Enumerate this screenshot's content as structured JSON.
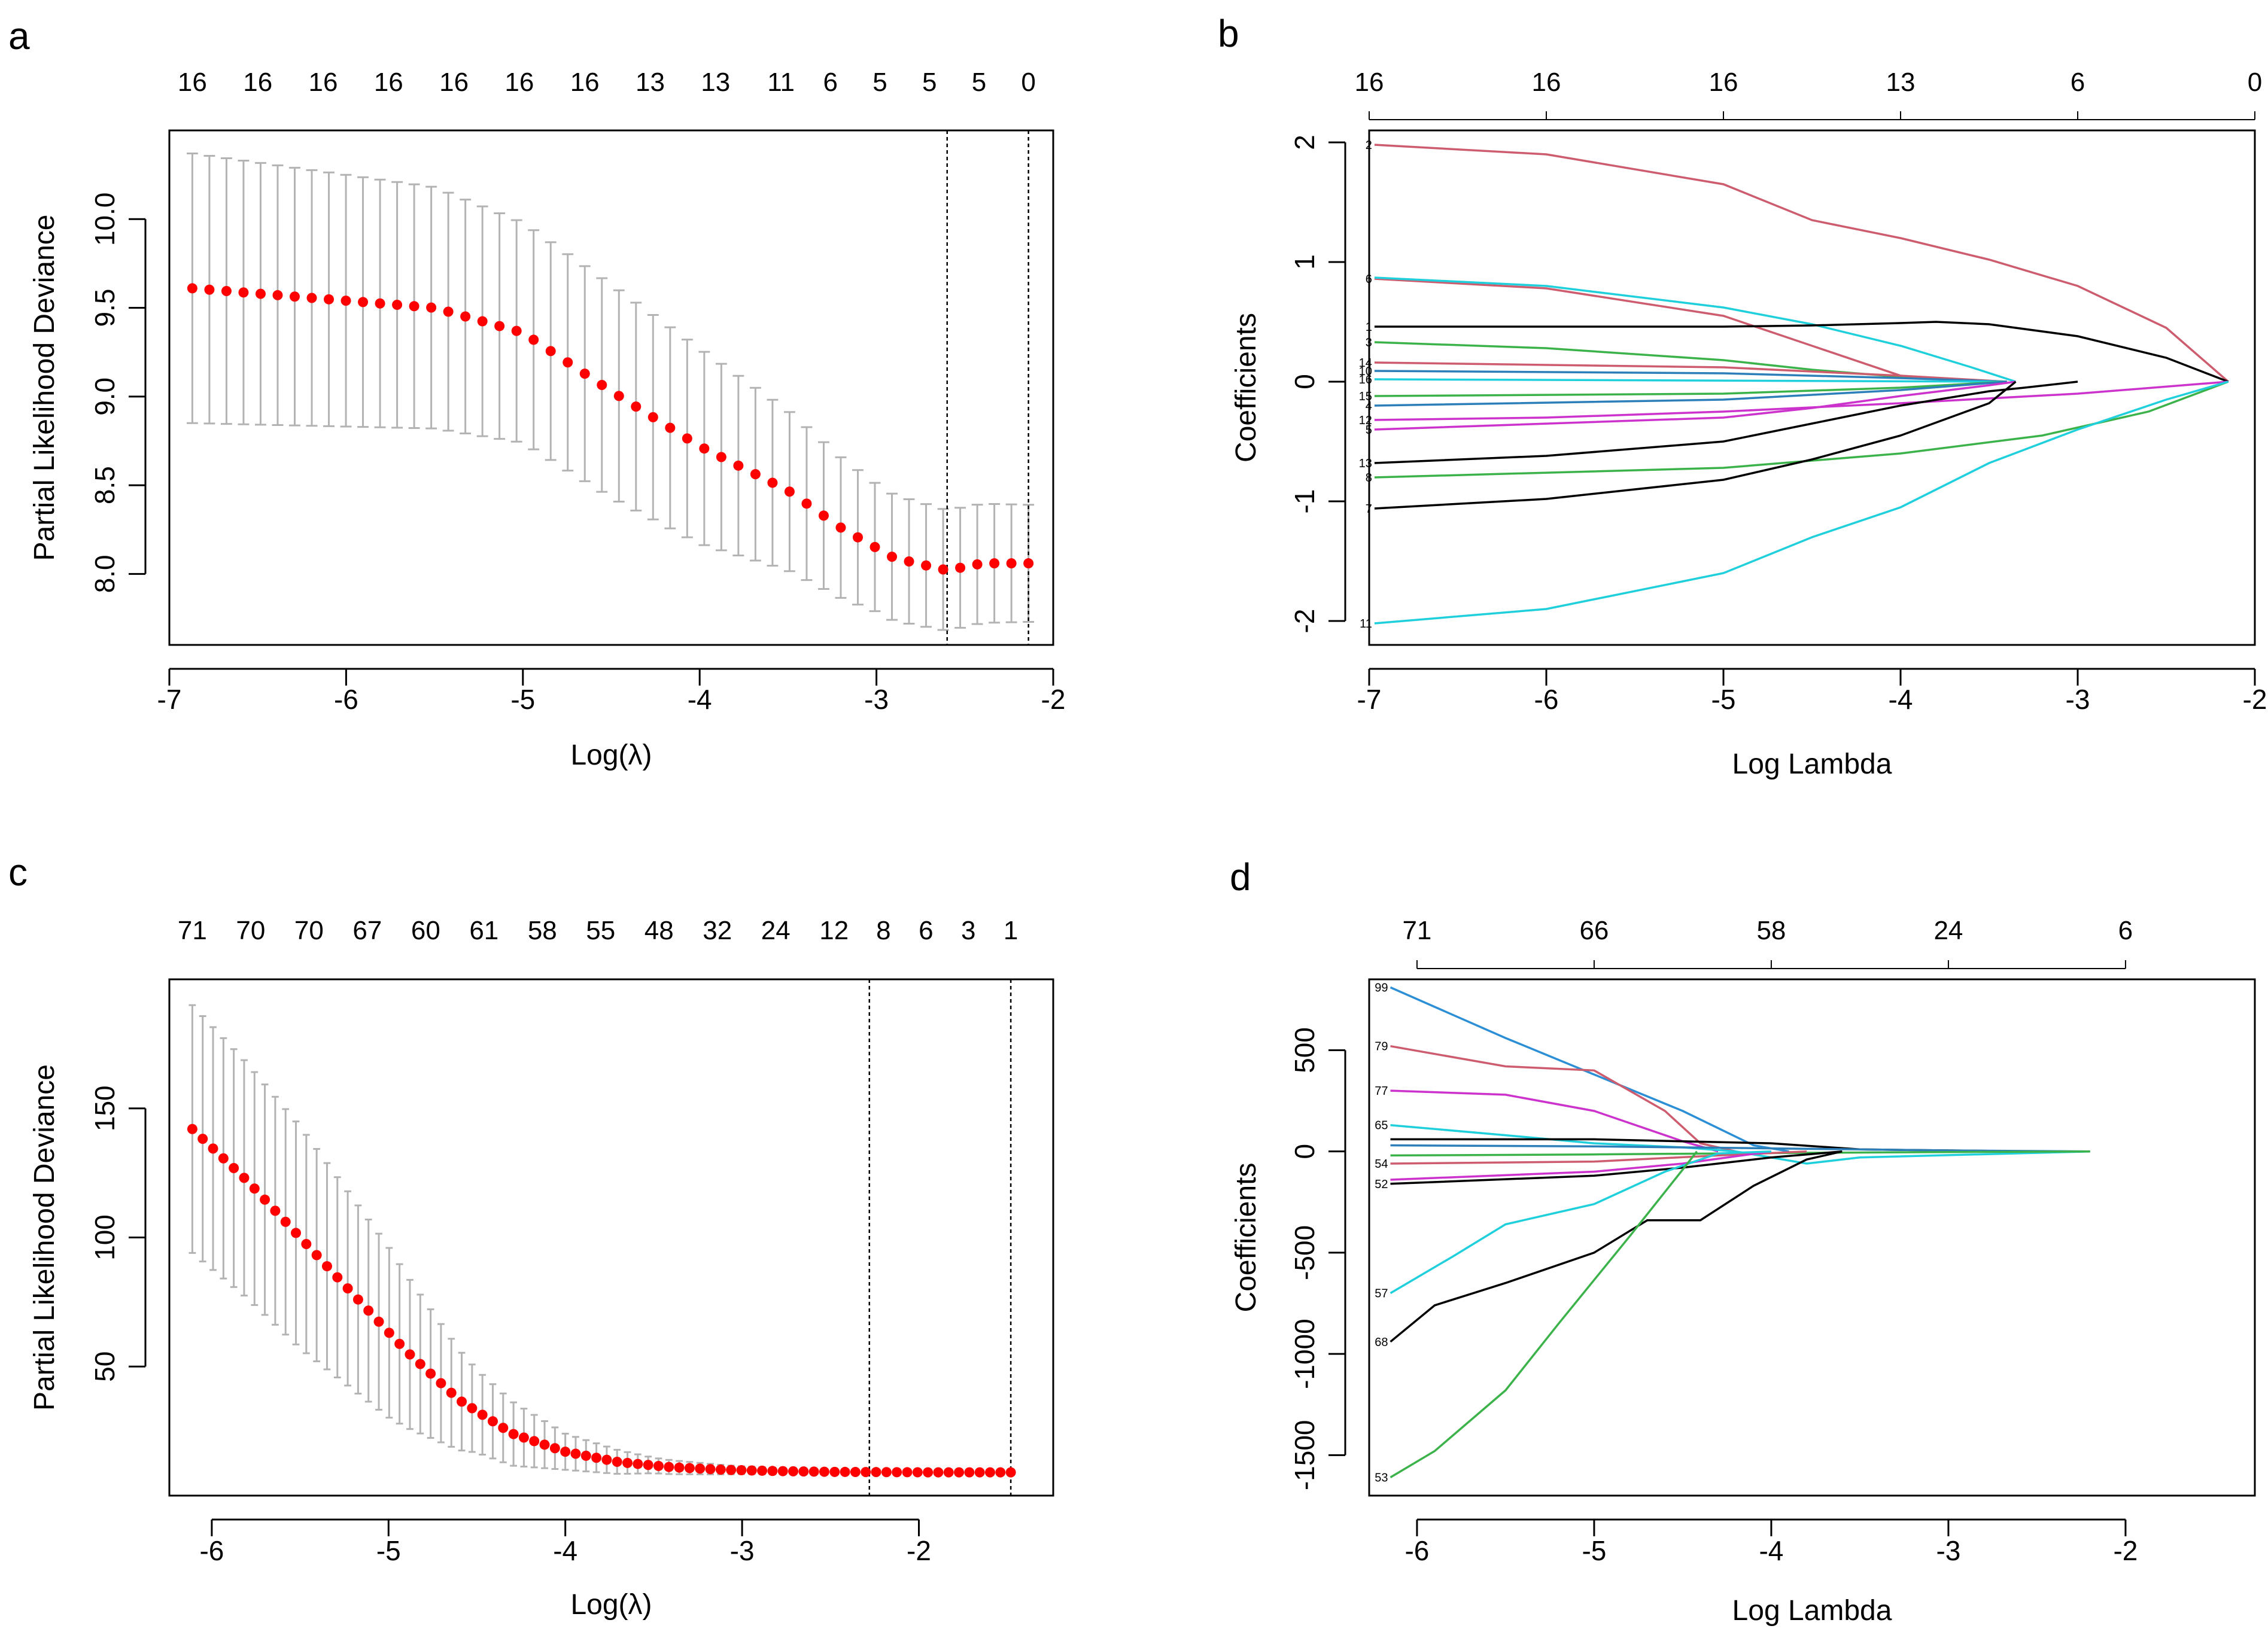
{
  "chart_data": [
    {
      "panel": "a",
      "type": "scatter",
      "subtype": "cv-deviance-with-errorbars",
      "xlabel": "Log(λ)",
      "ylabel": "Partial Likelihood Deviance",
      "xlim": [
        -7.0,
        -2.0
      ],
      "ylim": [
        7.6,
        10.5
      ],
      "xticks": [
        -7,
        -6,
        -5,
        -4,
        -3,
        -2
      ],
      "xtick_labels": [
        "-7",
        "-6",
        "-5",
        "-4",
        "-3",
        "-2"
      ],
      "yticks": [
        8.0,
        8.5,
        9.0,
        9.5,
        10.0
      ],
      "ytick_labels": [
        "8.0",
        "8.5",
        "9.0",
        "9.5",
        "10.0"
      ],
      "top_label_x": [
        -6.87,
        -6.5,
        -6.13,
        -5.76,
        -5.39,
        -5.02,
        -4.65,
        -4.28,
        -3.91,
        -3.54,
        -3.26,
        -2.98,
        -2.7,
        -2.42,
        -2.14
      ],
      "top_labels": [
        "16",
        "16",
        "16",
        "16",
        "16",
        "16",
        "16",
        "13",
        "13",
        "11",
        "6",
        "5",
        "5",
        "5",
        "0"
      ],
      "vlines": [
        -2.6,
        -2.14
      ],
      "curve": {
        "x_start": -6.87,
        "x_end": -2.14,
        "n": 50,
        "x": [
          -6.87,
          -5.5,
          -5.0,
          -4.5,
          -4.0,
          -3.5,
          -3.2,
          -2.9,
          -2.6,
          -2.4,
          -2.14
        ],
        "y": [
          9.61,
          9.5,
          9.36,
          9.03,
          8.72,
          8.47,
          8.26,
          8.09,
          8.02,
          8.06,
          8.06
        ]
      },
      "error": {
        "x": [
          -6.87,
          -5.5,
          -5.0,
          -4.5,
          -4.0,
          -3.5,
          -3.0,
          -2.6,
          -2.14
        ],
        "half_width": [
          0.76,
          0.68,
          0.62,
          0.6,
          0.55,
          0.45,
          0.36,
          0.34,
          0.33
        ]
      }
    },
    {
      "panel": "b",
      "type": "line",
      "subtype": "coefficient-paths",
      "xlabel": "Log Lambda",
      "ylabel": "Coefficients",
      "xlim": [
        -7.0,
        -2.0
      ],
      "ylim": [
        -2.2,
        2.1
      ],
      "xticks": [
        -7,
        -6,
        -5,
        -4,
        -3,
        -2
      ],
      "xtick_labels": [
        "-7",
        "-6",
        "-5",
        "-4",
        "-3",
        "-2"
      ],
      "yticks": [
        -2,
        -1,
        0,
        1,
        2
      ],
      "ytick_labels": [
        "-2",
        "-1",
        "0",
        "1",
        "2"
      ],
      "top_label_x": [
        -7,
        -6,
        -5,
        -4,
        -3,
        -2
      ],
      "top_labels": [
        "16",
        "16",
        "16",
        "13",
        "6",
        "0"
      ],
      "series": [
        {
          "name": "2",
          "color": "#cd5c6e",
          "x": [
            -6.97,
            -6,
            -5,
            -4.5,
            -4,
            -3.5,
            -3,
            -2.5,
            -2.15
          ],
          "y": [
            1.98,
            1.9,
            1.65,
            1.35,
            1.2,
            1.02,
            0.8,
            0.45,
            0
          ]
        },
        {
          "name": "6",
          "color": "#cd5c6e",
          "x": [
            -6.97,
            -6,
            -5,
            -4.5,
            -4,
            -3.6
          ],
          "y": [
            0.86,
            0.78,
            0.55,
            0.3,
            0.05,
            0
          ]
        },
        {
          "name": "",
          "color": "#1fd0dc",
          "x": [
            -6.97,
            -6,
            -5,
            -4.5,
            -4,
            -3.6,
            -3.35
          ],
          "y": [
            0.87,
            0.8,
            0.62,
            0.48,
            0.3,
            0.12,
            0
          ]
        },
        {
          "name": "1",
          "color": "#000000",
          "x": [
            -6.97,
            -6,
            -5,
            -4.5,
            -4,
            -3.8,
            -3.5,
            -3,
            -2.5,
            -2.15
          ],
          "y": [
            0.46,
            0.46,
            0.46,
            0.47,
            0.49,
            0.5,
            0.48,
            0.38,
            0.2,
            0
          ]
        },
        {
          "name": "3",
          "color": "#3cb34a",
          "x": [
            -6.97,
            -6,
            -5,
            -4.5,
            -4,
            -3.4
          ],
          "y": [
            0.33,
            0.28,
            0.18,
            0.1,
            0.04,
            0
          ]
        },
        {
          "name": "14",
          "color": "#cd5c6e",
          "x": [
            -6.97,
            -5,
            -4,
            -3.4
          ],
          "y": [
            0.16,
            0.12,
            0.05,
            0
          ]
        },
        {
          "name": "10",
          "color": "#2c7fb8",
          "x": [
            -6.97,
            -5,
            -4,
            -3.4
          ],
          "y": [
            0.09,
            0.07,
            0.03,
            0
          ]
        },
        {
          "name": "16",
          "color": "#1fd0dc",
          "x": [
            -6.97,
            -3.4
          ],
          "y": [
            0.02,
            0.0
          ]
        },
        {
          "name": "15",
          "color": "#3cb34a",
          "x": [
            -6.97,
            -5,
            -4,
            -3.4
          ],
          "y": [
            -0.12,
            -0.1,
            -0.05,
            0
          ]
        },
        {
          "name": "4",
          "color": "#2c7fb8",
          "x": [
            -6.97,
            -5,
            -4,
            -3.4
          ],
          "y": [
            -0.2,
            -0.15,
            -0.07,
            0
          ]
        },
        {
          "name": "12",
          "color": "#cc33cc",
          "x": [
            -6.97,
            -6,
            -5,
            -4,
            -3,
            -2.15
          ],
          "y": [
            -0.32,
            -0.3,
            -0.25,
            -0.18,
            -0.1,
            0
          ]
        },
        {
          "name": "5",
          "color": "#cc33cc",
          "x": [
            -6.97,
            -5,
            -4.5,
            -4,
            -3.5,
            -3.35
          ],
          "y": [
            -0.4,
            -0.3,
            -0.22,
            -0.12,
            -0.03,
            0
          ]
        },
        {
          "name": "13",
          "color": "#000000",
          "x": [
            -6.97,
            -6,
            -5,
            -4.5,
            -4,
            -3.5,
            -3.3,
            -3.0
          ],
          "y": [
            -0.68,
            -0.62,
            -0.5,
            -0.35,
            -0.2,
            -0.08,
            -0.05,
            0
          ]
        },
        {
          "name": "8",
          "color": "#3cb34a",
          "x": [
            -6.97,
            -5,
            -4,
            -3.2,
            -2.6,
            -2.15
          ],
          "y": [
            -0.8,
            -0.72,
            -0.6,
            -0.45,
            -0.25,
            0
          ]
        },
        {
          "name": "7",
          "color": "#000000",
          "x": [
            -6.97,
            -6,
            -5,
            -4.5,
            -4,
            -3.5,
            -3.35
          ],
          "y": [
            -1.06,
            -0.98,
            -0.82,
            -0.65,
            -0.45,
            -0.18,
            0
          ]
        },
        {
          "name": "11",
          "color": "#1fd0dc",
          "x": [
            -6.97,
            -6,
            -5,
            -4.5,
            -4,
            -3.5,
            -3,
            -2.5,
            -2.15
          ],
          "y": [
            -2.02,
            -1.9,
            -1.6,
            -1.3,
            -1.05,
            -0.68,
            -0.4,
            -0.15,
            0
          ]
        }
      ]
    },
    {
      "panel": "c",
      "type": "scatter",
      "subtype": "cv-deviance-with-errorbars",
      "xlabel": "Log(λ)",
      "ylabel": "Partial Likelihood Deviance",
      "xlim": [
        -6.24,
        -1.24
      ],
      "ylim": [
        0,
        200
      ],
      "xticks": [
        -6,
        -5,
        -4,
        -3,
        -2
      ],
      "xtick_labels": [
        "-6",
        "-5",
        "-4",
        "-3",
        "-2"
      ],
      "yticks": [
        50,
        100,
        150
      ],
      "ytick_labels": [
        "50",
        "100",
        "150"
      ],
      "top_label_x": [
        -6.11,
        -5.78,
        -5.45,
        -5.12,
        -4.79,
        -4.46,
        -4.13,
        -3.8,
        -3.47,
        -3.14,
        -2.81,
        -2.48,
        -2.2,
        -1.96,
        -1.72,
        -1.48
      ],
      "top_labels": [
        "71",
        "70",
        "70",
        "67",
        "60",
        "61",
        "58",
        "55",
        "48",
        "32",
        "24",
        "12",
        "8",
        "6",
        "3",
        "1"
      ],
      "vlines": [
        -2.28,
        -1.48
      ],
      "curve": {
        "x_start": -6.11,
        "x_end": -1.48,
        "n": 80,
        "x": [
          -6.11,
          -5.8,
          -5.5,
          -5.2,
          -4.9,
          -4.6,
          -4.3,
          -4.0,
          -3.7,
          -3.4,
          -3.1,
          -2.8,
          -2.5,
          -2.2,
          -1.9,
          -1.48
        ],
        "y": [
          142,
          122,
          100,
          78,
          56,
          37,
          24,
          17,
          13,
          11,
          10,
          9.5,
          9.2,
          9.1,
          9.0,
          9.0
        ]
      },
      "error": {
        "x": [
          -6.11,
          -5.5,
          -5.0,
          -4.5,
          -4.0,
          -3.5,
          -3.0,
          -2.5,
          -1.48
        ],
        "half_width": [
          48,
          43,
          33,
          16,
          7,
          3,
          1.5,
          0.8,
          0.6
        ]
      }
    },
    {
      "panel": "d",
      "type": "line",
      "subtype": "coefficient-paths",
      "xlabel": "Log Lambda",
      "ylabel": "Coefficients",
      "xlim": [
        -6.27,
        -1.27
      ],
      "ylim": [
        -1700,
        850
      ],
      "xticks": [
        -6,
        -5,
        -4,
        -3,
        -2
      ],
      "xtick_labels": [
        "-6",
        "-5",
        "-4",
        "-3",
        "-2"
      ],
      "yticks": [
        -1500,
        -1000,
        -500,
        0,
        500
      ],
      "ytick_labels": [
        "-1500",
        "-1000",
        "-500",
        "0",
        "500"
      ],
      "top_label_x": [
        -6,
        -5,
        -4,
        -3,
        -2
      ],
      "top_labels": [
        "71",
        "66",
        "58",
        "24",
        "6"
      ],
      "series": [
        {
          "name": "99",
          "color": "#2c8fd6",
          "x": [
            -6.15,
            -5.5,
            -5,
            -4.5,
            -4.1,
            -3.9
          ],
          "y": [
            810,
            560,
            380,
            200,
            30,
            0
          ]
        },
        {
          "name": "79",
          "color": "#cd5c6e",
          "x": [
            -6.15,
            -5.5,
            -5,
            -4.6,
            -4.4,
            -4.2
          ],
          "y": [
            520,
            420,
            400,
            200,
            40,
            0
          ]
        },
        {
          "name": "77",
          "color": "#cc33cc",
          "x": [
            -6.15,
            -5.5,
            -5,
            -4.5,
            -4.3
          ],
          "y": [
            300,
            280,
            200,
            50,
            0
          ]
        },
        {
          "name": "65",
          "color": "#1fd0dc",
          "x": [
            -6.15,
            -5.5,
            -5,
            -4.5,
            -4.2,
            -3.8,
            -3.5,
            -2.2
          ],
          "y": [
            130,
            80,
            40,
            20,
            0,
            -60,
            -30,
            0
          ]
        },
        {
          "name": "",
          "color": "#000000",
          "x": [
            -6.15,
            -5,
            -4,
            -3.5,
            -2.5
          ],
          "y": [
            60,
            60,
            40,
            10,
            0
          ]
        },
        {
          "name": "",
          "color": "#2c7fb8",
          "x": [
            -6.15,
            -5,
            -4,
            -3,
            -2.2
          ],
          "y": [
            30,
            25,
            15,
            5,
            0
          ]
        },
        {
          "name": "",
          "color": "#3cb34a",
          "x": [
            -6.15,
            -5,
            -4,
            -3,
            -2.2
          ],
          "y": [
            -20,
            -15,
            -8,
            -3,
            0
          ]
        },
        {
          "name": "54",
          "color": "#cd5c6e",
          "x": [
            -6.15,
            -5,
            -4.3,
            -3.8
          ],
          "y": [
            -60,
            -50,
            -20,
            0
          ]
        },
        {
          "name": "52",
          "color": "#000000",
          "x": [
            -6.15,
            -5,
            -4.5,
            -4,
            -3.6
          ],
          "y": [
            -160,
            -120,
            -80,
            -30,
            0
          ]
        },
        {
          "name": "",
          "color": "#cc33cc",
          "x": [
            -6.15,
            -5,
            -4.5,
            -4
          ],
          "y": [
            -140,
            -100,
            -60,
            0
          ]
        },
        {
          "name": "57",
          "color": "#1fd0dc",
          "x": [
            -6.15,
            -5.8,
            -5.5,
            -5,
            -4.6,
            -4.3,
            -4.0
          ],
          "y": [
            -700,
            -520,
            -360,
            -260,
            -100,
            -10,
            0
          ]
        },
        {
          "name": "68",
          "color": "#000000",
          "x": [
            -6.15,
            -5.9,
            -5.5,
            -5,
            -4.7,
            -4.4,
            -4.1,
            -3.8,
            -3.6
          ],
          "y": [
            -940,
            -760,
            -650,
            -500,
            -340,
            -340,
            -170,
            -40,
            0
          ]
        },
        {
          "name": "53",
          "color": "#3cb34a",
          "x": [
            -6.15,
            -5.9,
            -5.5,
            -5.2,
            -4.8,
            -4.5,
            -4.42
          ],
          "y": [
            -1610,
            -1480,
            -1180,
            -850,
            -420,
            -90,
            0
          ]
        }
      ]
    }
  ],
  "panels": {
    "a": {
      "letter": "a"
    },
    "b": {
      "letter": "b"
    },
    "c": {
      "letter": "c"
    },
    "d": {
      "letter": "d"
    }
  }
}
